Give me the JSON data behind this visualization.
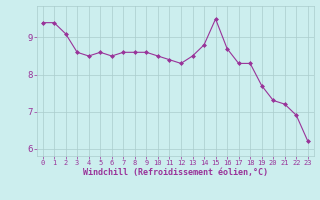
{
  "x": [
    0,
    1,
    2,
    3,
    4,
    5,
    6,
    7,
    8,
    9,
    10,
    11,
    12,
    13,
    14,
    15,
    16,
    17,
    18,
    19,
    20,
    21,
    22,
    23
  ],
  "y": [
    9.4,
    9.4,
    9.1,
    8.6,
    8.5,
    8.6,
    8.5,
    8.6,
    8.6,
    8.6,
    8.5,
    8.4,
    8.3,
    8.5,
    8.8,
    9.5,
    8.7,
    8.3,
    8.3,
    7.7,
    7.3,
    7.2,
    6.9,
    6.2
  ],
  "line_color": "#993399",
  "marker": "D",
  "marker_size": 2.0,
  "bg_color": "#cceeee",
  "grid_color": "#aacccc",
  "xlabel": "Windchill (Refroidissement éolien,°C)",
  "xlim": [
    -0.5,
    23.5
  ],
  "ylim": [
    5.8,
    9.85
  ],
  "yticks": [
    6,
    7,
    8,
    9
  ],
  "xticks": [
    0,
    1,
    2,
    3,
    4,
    5,
    6,
    7,
    8,
    9,
    10,
    11,
    12,
    13,
    14,
    15,
    16,
    17,
    18,
    19,
    20,
    21,
    22,
    23
  ],
  "tick_color": "#993399",
  "label_color": "#993399",
  "xlabel_fontsize": 6.0,
  "xtick_fontsize": 5.0,
  "ytick_fontsize": 6.5
}
